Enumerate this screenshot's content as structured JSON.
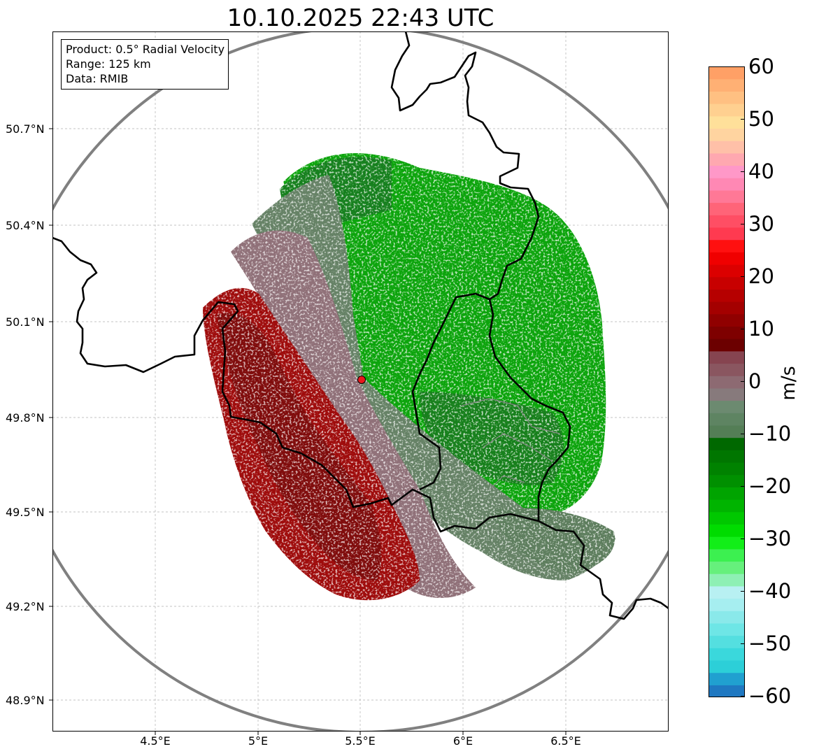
{
  "title": "10.10.2025 22:43 UTC",
  "info": {
    "product": "Product: 0.5° Radial Velocity",
    "range": "Range: 125 km",
    "source": "Data: RMIB"
  },
  "axes": {
    "lat_ticks": [
      "50.7°N",
      "50.4°N",
      "50.1°N",
      "49.8°N",
      "49.5°N",
      "49.2°N",
      "48.9°N"
    ],
    "lon_ticks": [
      "4.5°E",
      "5°E",
      "5.5°E",
      "6°E",
      "6.5°E"
    ]
  },
  "radar_site": {
    "lon": 5.505,
    "lat": 49.915,
    "marker_color": "#e8181c"
  },
  "range_ring_color": "#808080",
  "colorbar": {
    "label": "m/s",
    "ticks": [
      "60",
      "50",
      "40",
      "30",
      "20",
      "10",
      "0",
      "−10",
      "−20",
      "−30",
      "−40",
      "−50",
      "−60"
    ],
    "colors": [
      "#1f78c1",
      "#20a0d0",
      "#2ccfd8",
      "#3ad8dc",
      "#54dfe0",
      "#6ee6e6",
      "#8ae9ea",
      "#a6eef0",
      "#b8f0f2",
      "#8ef0b4",
      "#66f07c",
      "#3cf050",
      "#12ee18",
      "#00dc00",
      "#00c800",
      "#00b400",
      "#00a400",
      "#009000",
      "#008200",
      "#007600",
      "#006800",
      "#547e56",
      "#5e8462",
      "#6c8a70",
      "#877a7c",
      "#8d6a72",
      "#8a5660",
      "#864450",
      "#6c0000",
      "#7e0000",
      "#900000",
      "#a40000",
      "#b60000",
      "#c80000",
      "#dc0000",
      "#f00000",
      "#ff1010",
      "#ff3a50",
      "#ff4e64",
      "#ff6478",
      "#ff7896",
      "#ff88b4",
      "#ff98c8",
      "#ffa8b0",
      "#ffc0a8",
      "#ffd4a0",
      "#ffe09a",
      "#ffd090",
      "#ffc082",
      "#ffb074",
      "#ffa066"
    ]
  }
}
